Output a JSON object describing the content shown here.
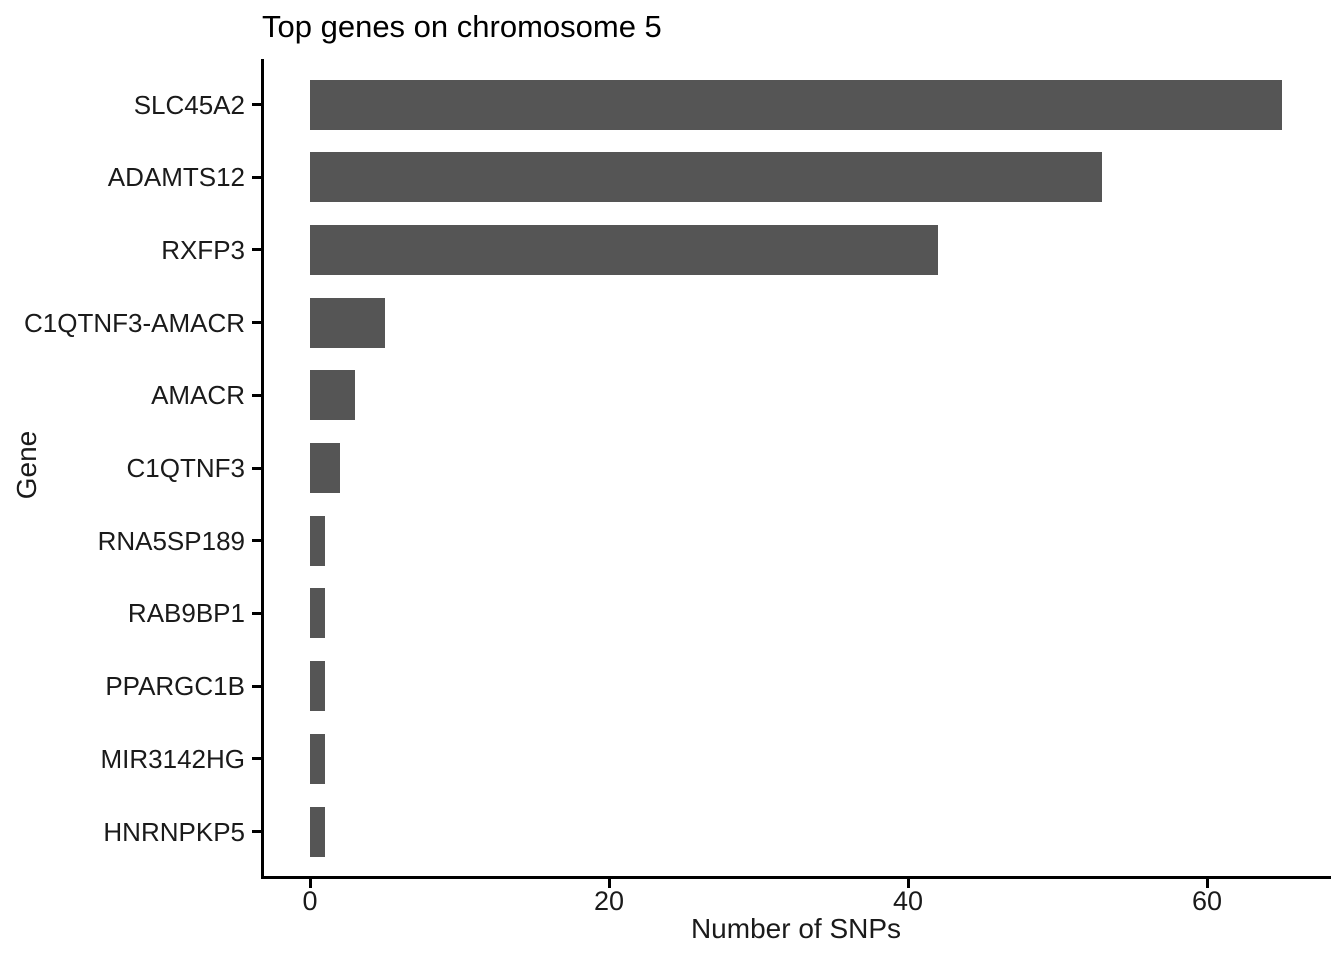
{
  "chart_data": {
    "type": "bar",
    "orientation": "horizontal",
    "title": "Top genes on chromosome 5",
    "xlabel": "Number of SNPs",
    "ylabel": "Gene",
    "categories": [
      "SLC45A2",
      "ADAMTS12",
      "RXFP3",
      "C1QTNF3-AMACR",
      "AMACR",
      "C1QTNF3",
      "RNA5SP189",
      "RAB9BP1",
      "PPARGC1B",
      "MIR3142HG",
      "HNRNPKP5"
    ],
    "values": [
      65,
      53,
      42,
      5,
      3,
      2,
      1,
      1,
      1,
      1,
      1
    ],
    "xticks": [
      0,
      20,
      40,
      60
    ],
    "xlim": [
      0,
      68.4
    ],
    "grid": false,
    "legend": "none",
    "bar_color": "#555555",
    "axis_color": "#000000",
    "text_color": "#1a1a1a",
    "background_color": "#ffffff"
  }
}
